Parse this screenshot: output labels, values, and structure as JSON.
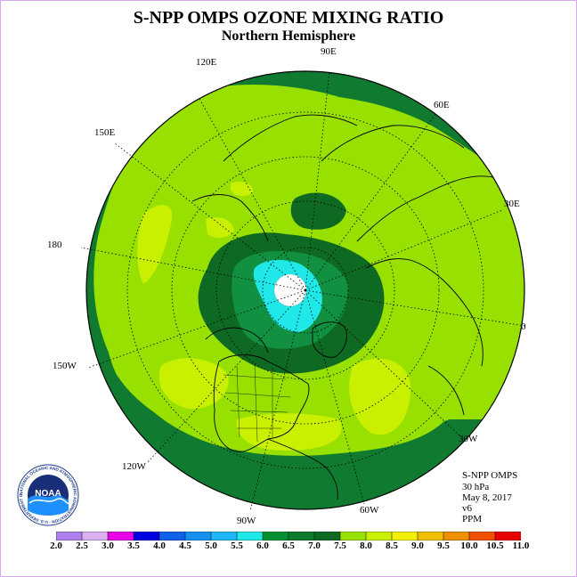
{
  "header": {
    "title": "S-NPP OMPS OZONE MIXING RATIO",
    "subtitle": "Northern Hemisphere"
  },
  "longitude_labels": {
    "e90": "90E",
    "e120": "120E",
    "e60": "60E",
    "e150": "150E",
    "e30": "30E",
    "e180": "180",
    "zero": "0",
    "w150": "150W",
    "w30": "30W",
    "w120": "120W",
    "w60": "60W",
    "w90": "90W"
  },
  "info": {
    "instrument": "S-NPP OMPS",
    "level": "30 hPa",
    "date": "May 8, 2017",
    "version": "v6",
    "units": "PPM"
  },
  "logo": {
    "text": "NOAA",
    "ring_text": "NATIONAL OCEANIC AND ATMOSPHERIC ADMINISTRATION · U.S. DEPARTMENT OF COMMERCE"
  },
  "colorbar": {
    "labels": [
      "2.0",
      "2.5",
      "3.0",
      "3.5",
      "4.0",
      "4.5",
      "5.0",
      "5.5",
      "6.0",
      "6.5",
      "7.0",
      "7.5",
      "8.0",
      "8.5",
      "9.0",
      "9.5",
      "10.0",
      "10.5",
      "11.0"
    ],
    "colors": [
      "#b080f0",
      "#dab0f0",
      "#e800e8",
      "#0000e0",
      "#1060e8",
      "#1890f0",
      "#20b8f8",
      "#20e8e8",
      "#009030",
      "#107a30",
      "#0e6a22",
      "#98e000",
      "#c8f000",
      "#f0f000",
      "#f0c000",
      "#f09000",
      "#f05000",
      "#e80000",
      "#806040"
    ]
  },
  "map_fields": {
    "background_level": "7.5–8.0",
    "outer_ring_level": "7.0",
    "polar_core_level": "5.5–6.0",
    "high_patch_level": "8.0–8.5"
  }
}
